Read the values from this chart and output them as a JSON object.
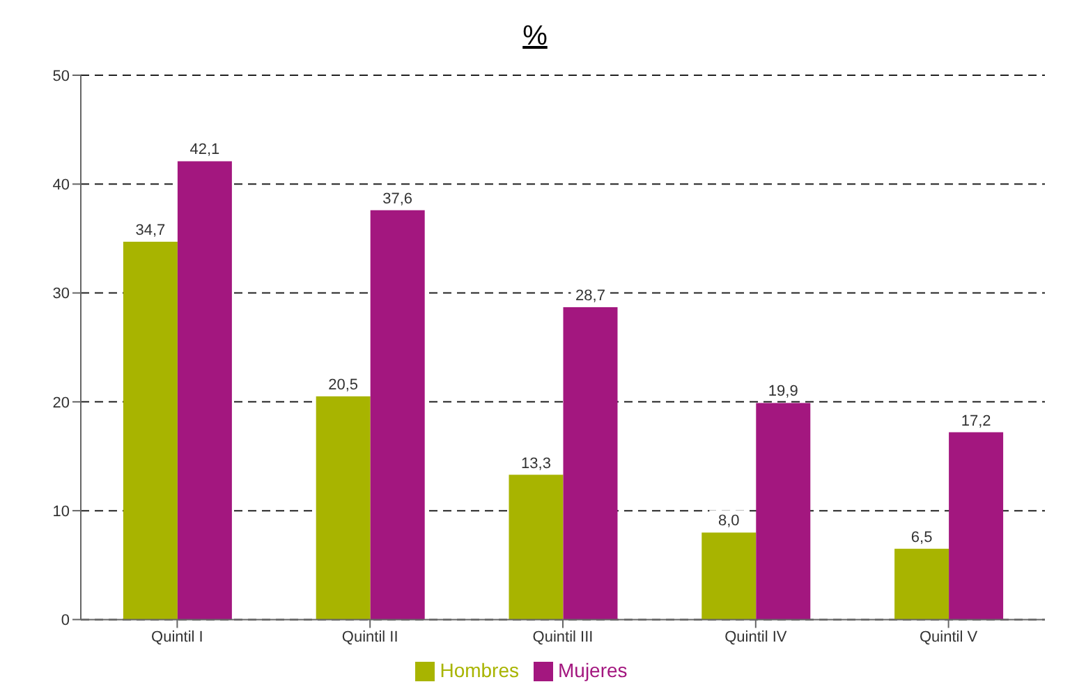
{
  "chart_data": {
    "type": "bar",
    "title": "%",
    "categories": [
      "Quintil I",
      "Quintil II",
      "Quintil III",
      "Quintil IV",
      "Quintil V"
    ],
    "series": [
      {
        "name": "Hombres",
        "color": "#a8b400",
        "values": [
          34.7,
          20.5,
          13.3,
          8.0,
          6.5
        ],
        "value_labels": [
          "34,7",
          "20,5",
          "13,3",
          "8,0",
          "6,5"
        ]
      },
      {
        "name": "Mujeres",
        "color": "#a3177f",
        "values": [
          42.1,
          37.6,
          28.7,
          19.9,
          17.2
        ],
        "value_labels": [
          "42,1",
          "37,6",
          "28,7",
          "19,9",
          "17,2"
        ]
      }
    ],
    "ylim": [
      0,
      50
    ],
    "yticks": [
      0,
      10,
      20,
      30,
      40,
      50
    ],
    "grid": "y",
    "legend": "bottom"
  }
}
